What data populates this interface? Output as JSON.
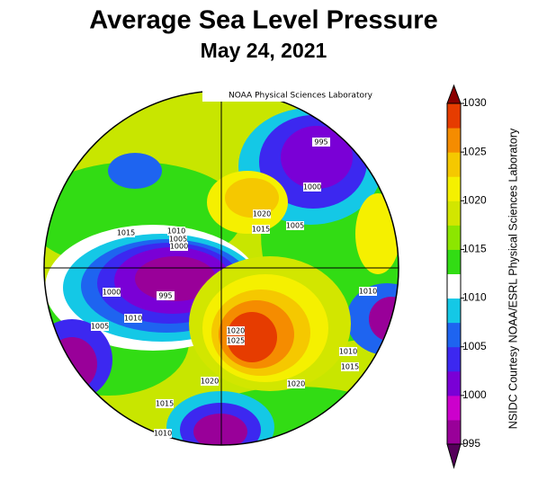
{
  "header": {
    "title": "Average Sea Level Pressure",
    "subtitle": "May 24, 2021"
  },
  "map": {
    "credit": "NOAA Physical Sciences Laboratory",
    "contour_labels": [
      995,
      1000,
      1020,
      1005,
      1015,
      1015,
      1010,
      1005,
      1000,
      1000,
      995,
      1010,
      1005,
      1010,
      1020,
      1025,
      1010,
      1015,
      1020,
      1020,
      1015,
      1010
    ]
  },
  "colorbar": {
    "label": "NSIDC Courtesy NOAA/ESRL Physical Sciences Laboratory",
    "range": [
      995,
      1030
    ],
    "ticks": [
      995,
      1000,
      1005,
      1010,
      1015,
      1020,
      1025,
      1030
    ],
    "colors": [
      "#990099",
      "#cc00cc",
      "#7a00d6",
      "#3c28f0",
      "#1e64f0",
      "#14c8e6",
      "#ffffff",
      "#32dc14",
      "#8ce600",
      "#d2e600",
      "#f5f000",
      "#f5c800",
      "#f58c00",
      "#e63c00"
    ]
  }
}
